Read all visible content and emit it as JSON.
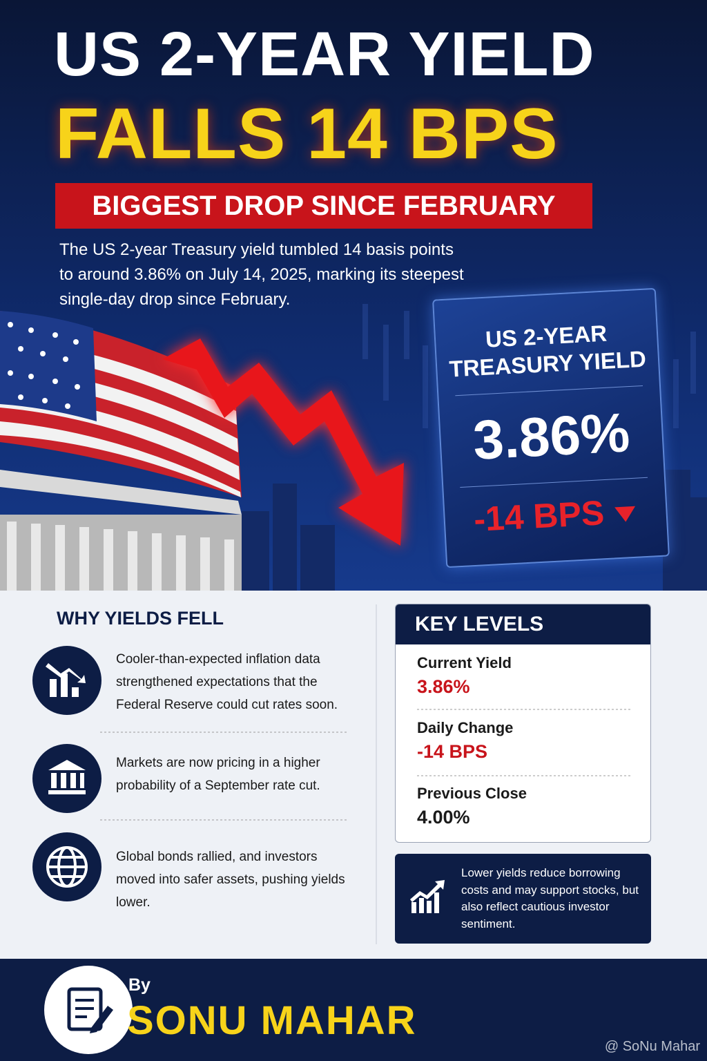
{
  "header": {
    "title_line1": "US 2-YEAR YIELD",
    "title_line2": "FALLS 14 BPS",
    "banner": "BIGGEST DROP SINCE FEBRUARY",
    "summary_lines": [
      "The US 2-year Treasury yield tumbled 14 basis points",
      "to around 3.86% on July 14, 2025, marking its steepest",
      "single-day drop since February."
    ]
  },
  "hero_card": {
    "title_line1": "US 2-YEAR",
    "title_line2": "TREASURY YIELD",
    "value": "3.86%",
    "change": "-14 BPS"
  },
  "why": {
    "title": "WHY YIELDS FELL",
    "items": [
      "Cooler-than-expected inflation data strengthened expectations that the Federal Reserve could cut rates soon.",
      "Markets are now pricing in a higher probability of a September rate cut.",
      "Global bonds rallied, and investors moved into safer assets, pushing yields lower."
    ]
  },
  "key_levels": {
    "title": "KEY LEVELS",
    "items": [
      {
        "label": "Current Yield",
        "value": "3.86%"
      },
      {
        "label": "Daily Change",
        "value": "-14 BPS"
      },
      {
        "label": "Previous Close",
        "value": "4.00%"
      }
    ]
  },
  "note": "Lower yields reduce borrowing costs and may support stocks, but also reflect cautious investor sentiment.",
  "footer": {
    "by": "By",
    "author": "SONU MAHAR",
    "watermark": "@ SoNu Mahar"
  }
}
